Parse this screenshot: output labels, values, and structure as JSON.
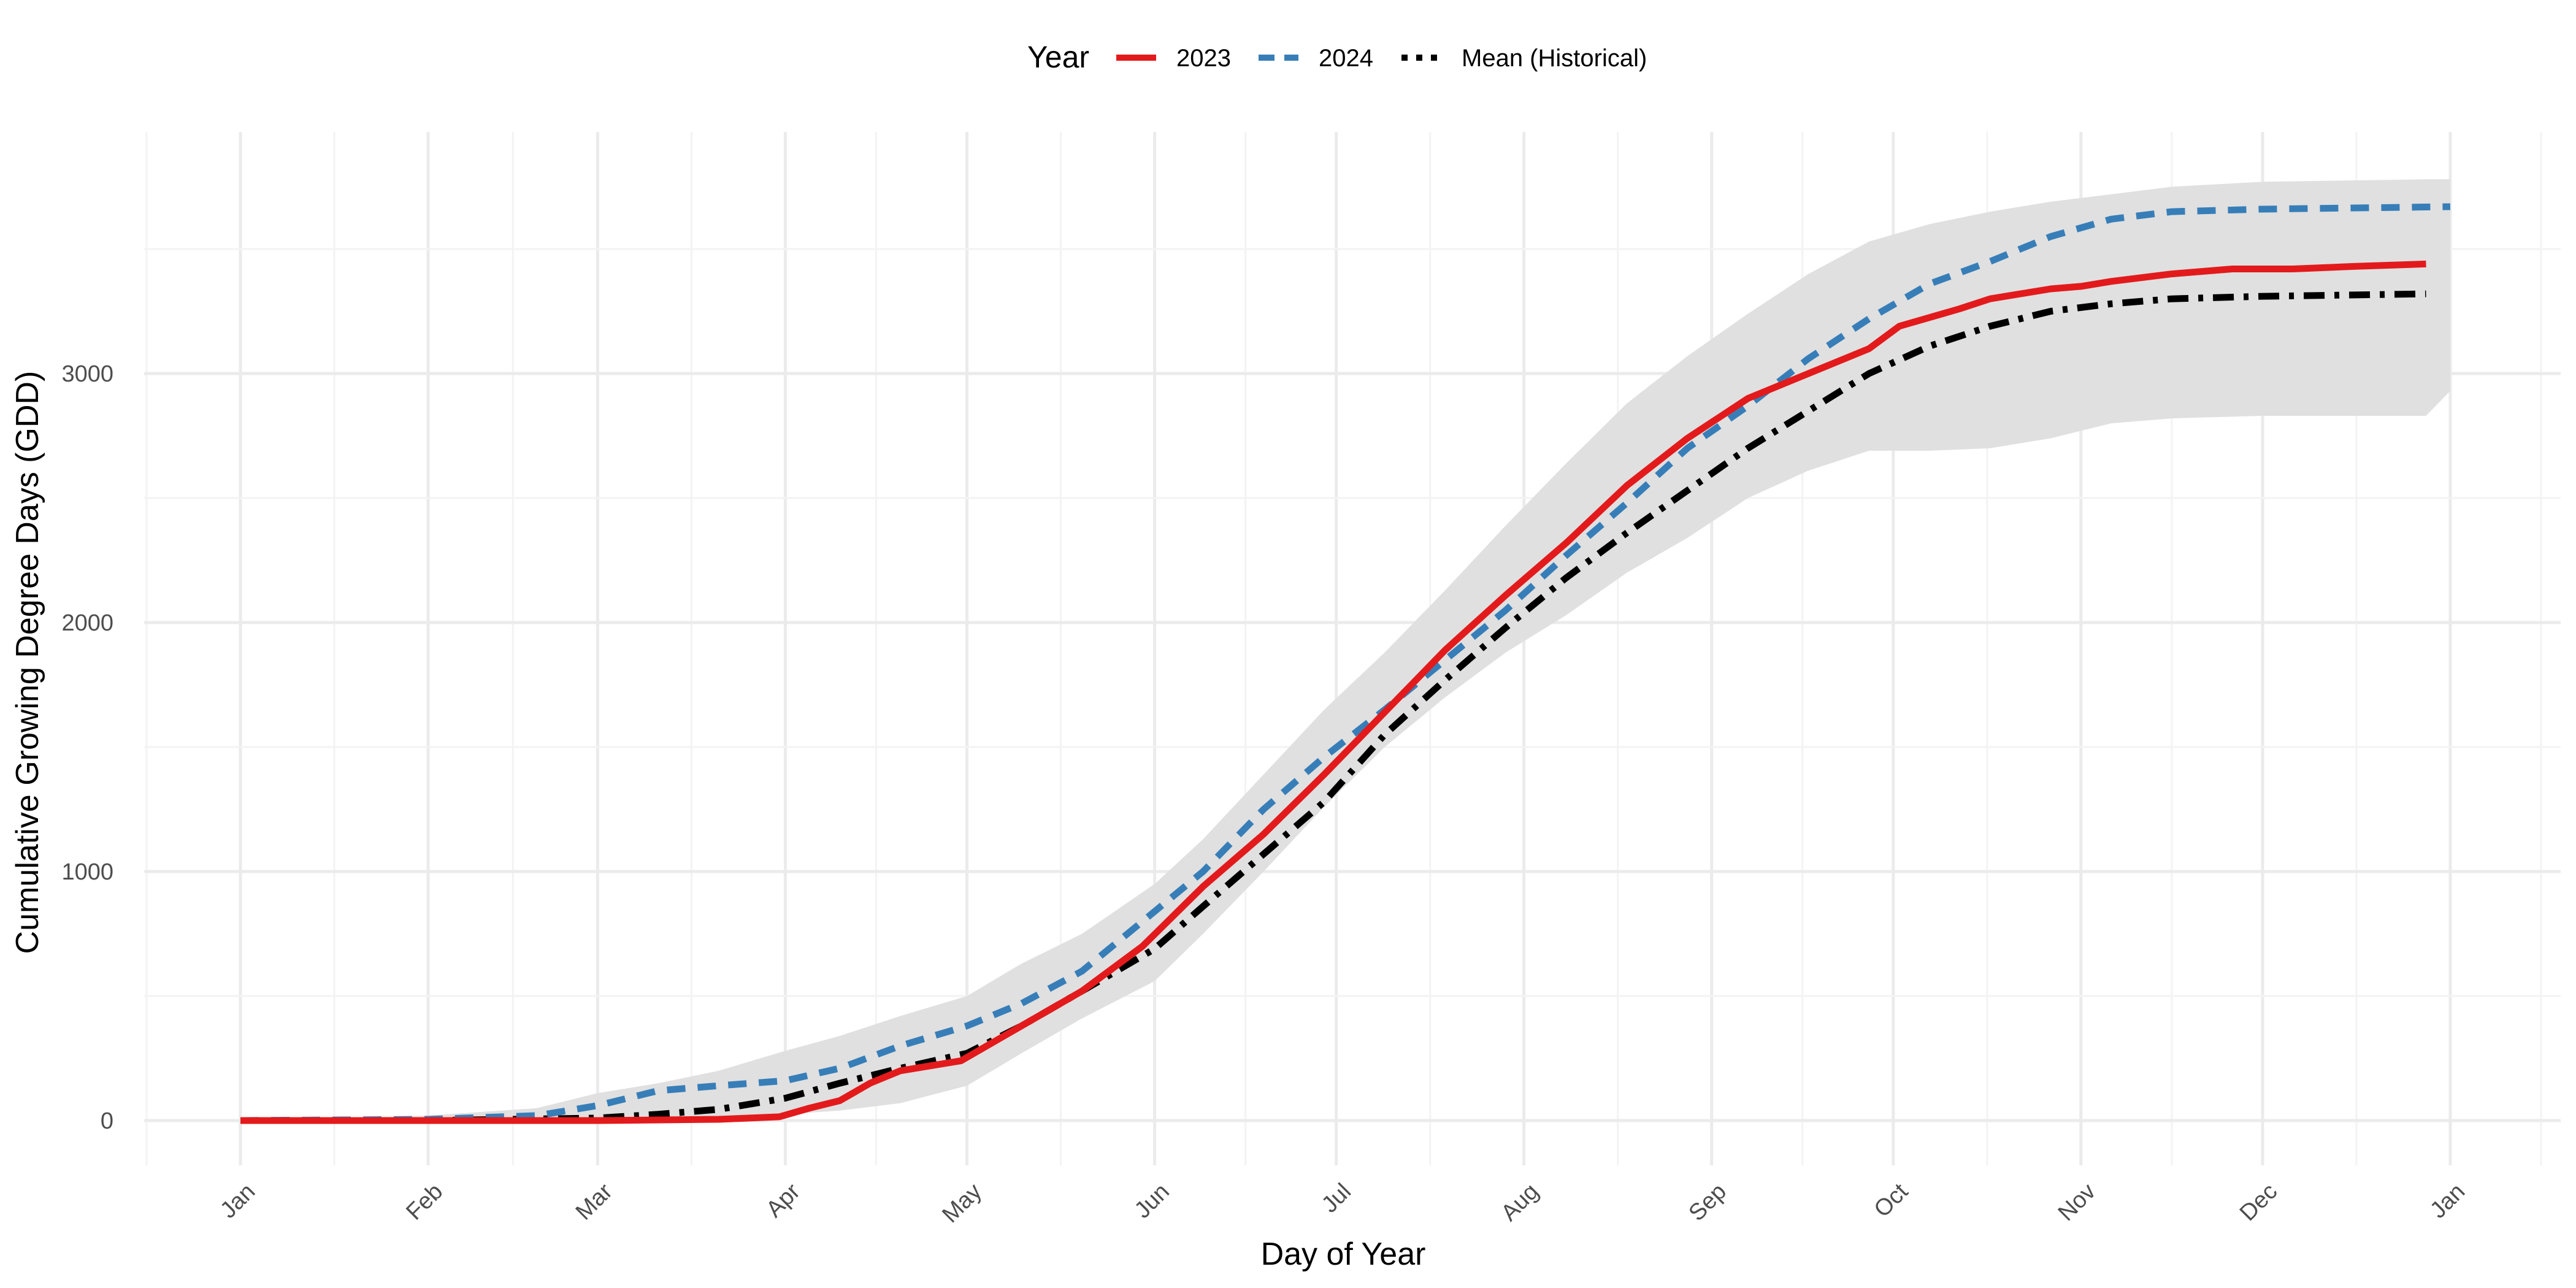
{
  "chart_data": {
    "type": "line",
    "title": "",
    "xlabel": "Day of Year",
    "ylabel": "Cumulative Growing Degree Days (GDD)",
    "legend": {
      "title": "Year",
      "position": "top"
    },
    "x_axis": {
      "tick_labels": [
        "Jan",
        "Feb",
        "Mar",
        "Apr",
        "May",
        "Jun",
        "Jul",
        "Aug",
        "Sep",
        "Oct",
        "Nov",
        "Dec",
        "Jan"
      ],
      "tick_days": [
        1,
        32,
        60,
        91,
        121,
        152,
        182,
        213,
        244,
        274,
        305,
        335,
        366
      ],
      "xlim": [
        1,
        366
      ]
    },
    "y_axis": {
      "ticks": [
        0,
        1000,
        2000,
        3000
      ],
      "ylim": [
        -170,
        3900
      ]
    },
    "grid": true,
    "colors": {
      "2023": "#e31a1c",
      "2024": "#377eb8",
      "mean": "#000000",
      "band": "#e0e0e0",
      "grid": "#ebebeb"
    },
    "series": [
      {
        "name": "2023",
        "style": "solid",
        "x": [
          1,
          32,
          60,
          80,
          90,
          95,
          100,
          105,
          110,
          115,
          120,
          130,
          140,
          150,
          160,
          170,
          180,
          190,
          200,
          210,
          220,
          230,
          240,
          250,
          260,
          270,
          275,
          285,
          290,
          295,
          300,
          305,
          310,
          320,
          330,
          340,
          350,
          362
        ],
        "y": [
          0,
          0,
          0,
          5,
          15,
          50,
          80,
          150,
          200,
          220,
          240,
          380,
          520,
          700,
          940,
          1150,
          1390,
          1640,
          1890,
          2110,
          2320,
          2550,
          2740,
          2900,
          3000,
          3100,
          3190,
          3260,
          3300,
          3320,
          3340,
          3350,
          3370,
          3400,
          3420,
          3420,
          3430,
          3440
        ]
      },
      {
        "name": "2024",
        "style": "dashed",
        "x": [
          1,
          32,
          50,
          60,
          70,
          80,
          91,
          100,
          110,
          121,
          130,
          140,
          152,
          160,
          170,
          180,
          190,
          200,
          210,
          220,
          230,
          240,
          250,
          260,
          270,
          280,
          290,
          300,
          310,
          320,
          335,
          366
        ],
        "y": [
          0,
          5,
          20,
          60,
          120,
          140,
          160,
          210,
          300,
          380,
          470,
          600,
          840,
          1000,
          1250,
          1460,
          1650,
          1850,
          2050,
          2270,
          2480,
          2700,
          2870,
          3060,
          3220,
          3360,
          3450,
          3550,
          3620,
          3650,
          3660,
          3670
        ]
      },
      {
        "name": "Mean (Historical)",
        "style": "dotdash",
        "x": [
          1,
          32,
          60,
          70,
          80,
          91,
          100,
          110,
          121,
          130,
          140,
          152,
          160,
          170,
          180,
          190,
          200,
          210,
          220,
          230,
          240,
          250,
          260,
          270,
          280,
          290,
          300,
          310,
          320,
          335,
          362
        ],
        "y": [
          0,
          0,
          10,
          25,
          45,
          90,
          150,
          210,
          270,
          380,
          520,
          690,
          860,
          1070,
          1280,
          1550,
          1770,
          1980,
          2180,
          2360,
          2530,
          2700,
          2850,
          3000,
          3110,
          3190,
          3250,
          3280,
          3300,
          3310,
          3320
        ]
      }
    ],
    "band": {
      "name": "historical range",
      "x": [
        1,
        32,
        50,
        60,
        70,
        80,
        91,
        100,
        110,
        121,
        130,
        140,
        152,
        160,
        170,
        180,
        190,
        200,
        210,
        220,
        230,
        240,
        250,
        260,
        270,
        280,
        290,
        300,
        310,
        320,
        335,
        362,
        366
      ],
      "upper": [
        0,
        20,
        50,
        110,
        150,
        200,
        280,
        340,
        420,
        500,
        630,
        750,
        950,
        1130,
        1390,
        1650,
        1880,
        2130,
        2390,
        2640,
        2880,
        3070,
        3240,
        3400,
        3530,
        3600,
        3650,
        3690,
        3720,
        3750,
        3770,
        3780,
        3780
      ],
      "lower": [
        0,
        -5,
        -5,
        0,
        5,
        15,
        25,
        40,
        70,
        140,
        270,
        410,
        560,
        750,
        1000,
        1260,
        1500,
        1700,
        1880,
        2030,
        2200,
        2340,
        2500,
        2610,
        2690,
        2690,
        2700,
        2740,
        2800,
        2820,
        2830,
        2830,
        2930
      ]
    }
  }
}
